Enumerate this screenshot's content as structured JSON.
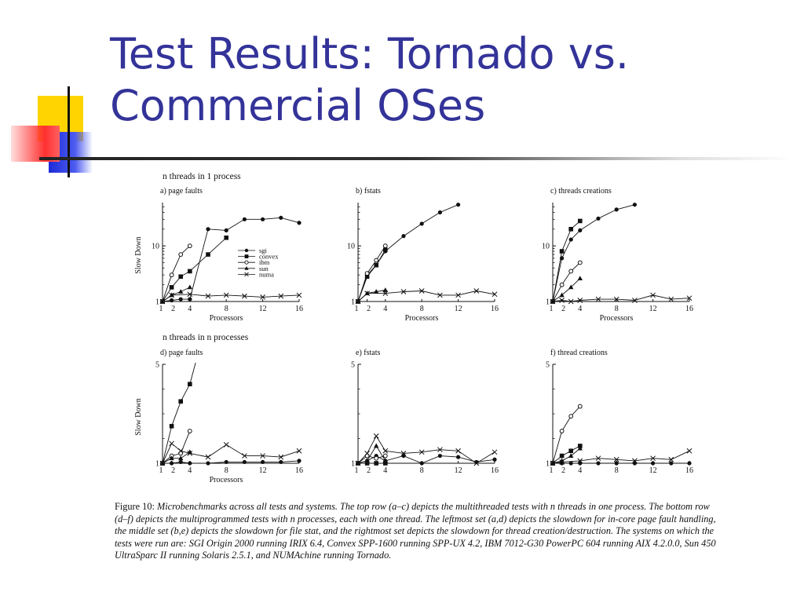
{
  "slide": {
    "title_line1": "Test Results: Tornado vs.",
    "title_line2": "Commercial OSes"
  },
  "row_titles": [
    "n threads in 1 process",
    "n threads in n processes"
  ],
  "caption": {
    "figure_label": "Figure 10:",
    "text": "Microbenchmarks across all tests and systems. The top row (a–c) depicts the multithreaded tests with n threads in one process. The bottom row (d–f) depicts the multiprogrammed tests with n processes, each with one thread. The leftmost set (a,d) depicts the slowdown for in-core page fault handling, the middle set (b,e) depicts the slowdown for file stat, and the rightmost set depicts the slowdown for thread creation/destruction. The systems on which the tests were run are: SGI Origin 2000 running IRIX 6.4, Convex SPP-1600 running SPP-UX 4.2, IBM 7012-G30 PowerPC 604 running AIX 4.2.0.0, Sun 450 UltraSparc II running Solaris 2.5.1, and NUMAchine running Tornado."
  },
  "colors": {
    "title": "#333399",
    "ink": "#111111"
  },
  "legend": [
    "sgi",
    "convex",
    "ibm",
    "sun",
    "numa"
  ],
  "chart_data": [
    {
      "type": "line",
      "title": "a) page faults",
      "xlabel": "Processors",
      "ylabel": "Slow Down",
      "x_ticks": [
        1,
        2,
        4,
        8,
        12,
        16
      ],
      "y_ticks": [
        1,
        10
      ],
      "y_scale": "log",
      "ylim": [
        1,
        60
      ],
      "xlim": [
        1,
        16
      ],
      "series": [
        {
          "name": "sgi",
          "marker": "dot",
          "points": [
            [
              1,
              1
            ],
            [
              2,
              1.05
            ],
            [
              3,
              1.1
            ],
            [
              4,
              1.1
            ]
          ]
        },
        {
          "name": "convex",
          "marker": "square",
          "points": [
            [
              1,
              1
            ],
            [
              2,
              1.8
            ],
            [
              3,
              2.8
            ],
            [
              4,
              3.5
            ],
            [
              6,
              7
            ],
            [
              8,
              14
            ]
          ]
        },
        {
          "name": "ibm",
          "marker": "diamond",
          "points": [
            [
              1,
              1
            ],
            [
              2,
              3
            ],
            [
              3,
              7
            ],
            [
              4,
              10
            ]
          ]
        },
        {
          "name": "sun",
          "marker": "triangle",
          "points": [
            [
              1,
              1
            ],
            [
              2,
              1.3
            ],
            [
              3,
              1.5
            ],
            [
              4,
              1.8
            ]
          ]
        },
        {
          "name": "numa",
          "marker": "cross",
          "points": [
            [
              1,
              1
            ],
            [
              2,
              1.3
            ],
            [
              4,
              1.35
            ],
            [
              6,
              1.25
            ],
            [
              8,
              1.3
            ],
            [
              10,
              1.25
            ],
            [
              12,
              1.2
            ],
            [
              14,
              1.25
            ],
            [
              16,
              1.3
            ]
          ]
        },
        {
          "name": "",
          "marker": "dot",
          "points": [
            [
              4,
              1.1
            ],
            [
              6,
              20
            ],
            [
              8,
              19
            ],
            [
              10,
              30
            ],
            [
              12,
              30
            ],
            [
              14,
              32
            ],
            [
              16,
              26
            ]
          ]
        }
      ]
    },
    {
      "type": "line",
      "title": "b) fstats",
      "xlabel": "Processors",
      "ylabel": "",
      "x_ticks": [
        1,
        2,
        4,
        8,
        12,
        16
      ],
      "y_ticks": [
        1,
        10
      ],
      "y_scale": "log",
      "ylim": [
        1,
        60
      ],
      "xlim": [
        1,
        16
      ],
      "series": [
        {
          "name": "sgi",
          "marker": "dot",
          "points": [
            [
              1,
              1
            ],
            [
              2,
              3
            ],
            [
              3,
              4.5
            ],
            [
              4,
              8
            ],
            [
              6,
              15
            ],
            [
              8,
              25
            ],
            [
              10,
              40
            ],
            [
              12,
              55
            ]
          ]
        },
        {
          "name": "convex",
          "marker": "square",
          "points": [
            [
              1,
              1
            ],
            [
              2,
              2.8
            ],
            [
              3,
              4.5
            ],
            [
              4,
              8.5
            ]
          ]
        },
        {
          "name": "ibm",
          "marker": "diamond",
          "points": [
            [
              1,
              1
            ],
            [
              2,
              3.2
            ],
            [
              3,
              5.5
            ],
            [
              4,
              10
            ]
          ]
        },
        {
          "name": "sun",
          "marker": "triangle",
          "points": [
            [
              1,
              1
            ],
            [
              2,
              1.4
            ],
            [
              3,
              1.5
            ],
            [
              4,
              1.6
            ]
          ]
        },
        {
          "name": "numa",
          "marker": "cross",
          "points": [
            [
              1,
              1
            ],
            [
              2,
              1.4
            ],
            [
              4,
              1.4
            ],
            [
              6,
              1.5
            ],
            [
              8,
              1.55
            ],
            [
              10,
              1.3
            ],
            [
              12,
              1.3
            ],
            [
              14,
              1.55
            ],
            [
              16,
              1.35
            ]
          ]
        }
      ]
    },
    {
      "type": "line",
      "title": "c) threads creations",
      "xlabel": "Processors",
      "ylabel": "",
      "x_ticks": [
        1,
        2,
        4,
        8,
        12,
        16
      ],
      "y_ticks": [
        1,
        10
      ],
      "y_scale": "log",
      "ylim": [
        1,
        60
      ],
      "xlim": [
        1,
        16
      ],
      "series": [
        {
          "name": "sgi",
          "marker": "dot",
          "points": [
            [
              1,
              1
            ],
            [
              2,
              6
            ],
            [
              3,
              13
            ],
            [
              4,
              19
            ],
            [
              6,
              31
            ],
            [
              8,
              45
            ],
            [
              10,
              55
            ]
          ]
        },
        {
          "name": "convex",
          "marker": "square",
          "points": [
            [
              1,
              1
            ],
            [
              2,
              8
            ],
            [
              3,
              20
            ],
            [
              4,
              28
            ]
          ]
        },
        {
          "name": "ibm",
          "marker": "diamond",
          "points": [
            [
              1,
              1
            ],
            [
              2,
              2
            ],
            [
              3,
              3.5
            ],
            [
              4,
              5
            ]
          ]
        },
        {
          "name": "sun",
          "marker": "triangle",
          "points": [
            [
              1,
              1
            ],
            [
              2,
              1.3
            ],
            [
              3,
              1.8
            ],
            [
              4,
              2.6
            ]
          ]
        },
        {
          "name": "numa",
          "marker": "cross",
          "points": [
            [
              1,
              1
            ],
            [
              2,
              1.05
            ],
            [
              3,
              1
            ],
            [
              4,
              1.05
            ],
            [
              6,
              1.1
            ],
            [
              8,
              1.1
            ],
            [
              10,
              1.05
            ],
            [
              12,
              1.3
            ],
            [
              14,
              1.1
            ],
            [
              16,
              1.15
            ]
          ]
        }
      ]
    },
    {
      "type": "line",
      "title": "d) page faults",
      "xlabel": "Processors",
      "ylabel": "Slow Down",
      "x_ticks": [
        1,
        2,
        4,
        8,
        12,
        16
      ],
      "y_ticks": [
        1,
        5
      ],
      "y_scale": "linear",
      "ylim": [
        1,
        5
      ],
      "xlim": [
        1,
        16
      ],
      "series": [
        {
          "name": "sgi",
          "marker": "dot",
          "points": [
            [
              1,
              1
            ],
            [
              2,
              1
            ],
            [
              3,
              1.05
            ],
            [
              4,
              1
            ],
            [
              6,
              1
            ],
            [
              8,
              1.05
            ],
            [
              10,
              1.05
            ],
            [
              12,
              1.05
            ],
            [
              14,
              1.05
            ],
            [
              16,
              1.1
            ]
          ]
        },
        {
          "name": "convex",
          "marker": "square",
          "points": [
            [
              1,
              1
            ],
            [
              2,
              2.5
            ],
            [
              3,
              3.5
            ],
            [
              4,
              4.2
            ]
          ]
        },
        {
          "name": "ibm",
          "marker": "diamond",
          "points": [
            [
              1,
              1
            ],
            [
              2,
              1.3
            ],
            [
              3,
              1.4
            ],
            [
              4,
              2.3
            ]
          ]
        },
        {
          "name": "sun",
          "marker": "triangle",
          "points": [
            [
              1,
              1
            ],
            [
              2,
              1.2
            ],
            [
              3,
              1.2
            ],
            [
              4,
              1.45
            ]
          ]
        },
        {
          "name": "numa",
          "marker": "cross",
          "points": [
            [
              1,
              1
            ],
            [
              2,
              1.8
            ],
            [
              3,
              1.5
            ],
            [
              4,
              1.4
            ],
            [
              6,
              1.25
            ],
            [
              8,
              1.75
            ],
            [
              10,
              1.3
            ],
            [
              12,
              1.3
            ],
            [
              14,
              1.25
            ],
            [
              16,
              1.5
            ]
          ]
        },
        {
          "name": "",
          "marker": "none",
          "points": [
            [
              4,
              4.2
            ],
            [
              4.8,
              5.3
            ]
          ]
        }
      ]
    },
    {
      "type": "line",
      "title": "e) fstats",
      "xlabel": "",
      "ylabel": "",
      "x_ticks": [
        1,
        2,
        4,
        8,
        12,
        16
      ],
      "y_ticks": [
        1,
        5
      ],
      "y_scale": "linear",
      "ylim": [
        1,
        5
      ],
      "xlim": [
        1,
        16
      ],
      "series": [
        {
          "name": "sgi",
          "marker": "dot",
          "points": [
            [
              1,
              1
            ],
            [
              2,
              1.1
            ],
            [
              3,
              1.3
            ],
            [
              4,
              1.1
            ],
            [
              6,
              1.3
            ],
            [
              8,
              1
            ],
            [
              10,
              1.3
            ],
            [
              12,
              1.25
            ],
            [
              14,
              1.05
            ],
            [
              16,
              1.15
            ]
          ]
        },
        {
          "name": "convex",
          "marker": "square",
          "points": [
            [
              1,
              1
            ],
            [
              2,
              1
            ],
            [
              3,
              1
            ],
            [
              4,
              1
            ]
          ]
        },
        {
          "name": "ibm",
          "marker": "diamond",
          "points": [
            [
              1,
              1
            ],
            [
              2,
              1.3
            ],
            [
              3,
              1.2
            ],
            [
              4,
              1.3
            ]
          ]
        },
        {
          "name": "sun",
          "marker": "triangle",
          "points": [
            [
              1,
              1
            ],
            [
              2,
              1.1
            ],
            [
              3,
              1.7
            ],
            [
              4,
              1.1
            ]
          ]
        },
        {
          "name": "numa",
          "marker": "cross",
          "points": [
            [
              1,
              1
            ],
            [
              2,
              1.4
            ],
            [
              3,
              2.1
            ],
            [
              4,
              1.5
            ],
            [
              6,
              1.4
            ],
            [
              8,
              1.45
            ],
            [
              10,
              1.55
            ],
            [
              12,
              1.5
            ],
            [
              14,
              1
            ],
            [
              16,
              1.45
            ]
          ]
        }
      ]
    },
    {
      "type": "line",
      "title": "f) thread creations",
      "xlabel": "",
      "ylabel": "",
      "x_ticks": [
        1,
        2,
        4,
        8,
        12,
        16
      ],
      "y_ticks": [
        1,
        5
      ],
      "y_scale": "linear",
      "ylim": [
        1,
        5
      ],
      "xlim": [
        1,
        16
      ],
      "series": [
        {
          "name": "sgi",
          "marker": "dot",
          "points": [
            [
              1,
              1
            ],
            [
              2,
              1
            ],
            [
              3,
              1
            ],
            [
              4,
              1
            ],
            [
              6,
              1
            ],
            [
              8,
              1
            ],
            [
              10,
              1
            ],
            [
              12,
              1
            ],
            [
              14,
              1
            ],
            [
              16,
              1
            ]
          ]
        },
        {
          "name": "convex",
          "marker": "square",
          "points": [
            [
              1,
              1
            ],
            [
              2,
              1.3
            ],
            [
              3,
              1.5
            ],
            [
              4,
              1.7
            ]
          ]
        },
        {
          "name": "ibm",
          "marker": "diamond",
          "points": [
            [
              1,
              1
            ],
            [
              2,
              2.3
            ],
            [
              3,
              2.9
            ],
            [
              4,
              3.3
            ]
          ]
        },
        {
          "name": "sun",
          "marker": "triangle",
          "points": [
            [
              1,
              1
            ],
            [
              2,
              1.1
            ],
            [
              3,
              1.3
            ],
            [
              4,
              1.6
            ]
          ]
        },
        {
          "name": "numa",
          "marker": "cross",
          "points": [
            [
              1,
              1
            ],
            [
              2,
              1.05
            ],
            [
              4,
              1.1
            ],
            [
              6,
              1.2
            ],
            [
              8,
              1.15
            ],
            [
              10,
              1.1
            ],
            [
              12,
              1.2
            ],
            [
              14,
              1.15
            ],
            [
              16,
              1.5
            ]
          ]
        }
      ]
    }
  ]
}
